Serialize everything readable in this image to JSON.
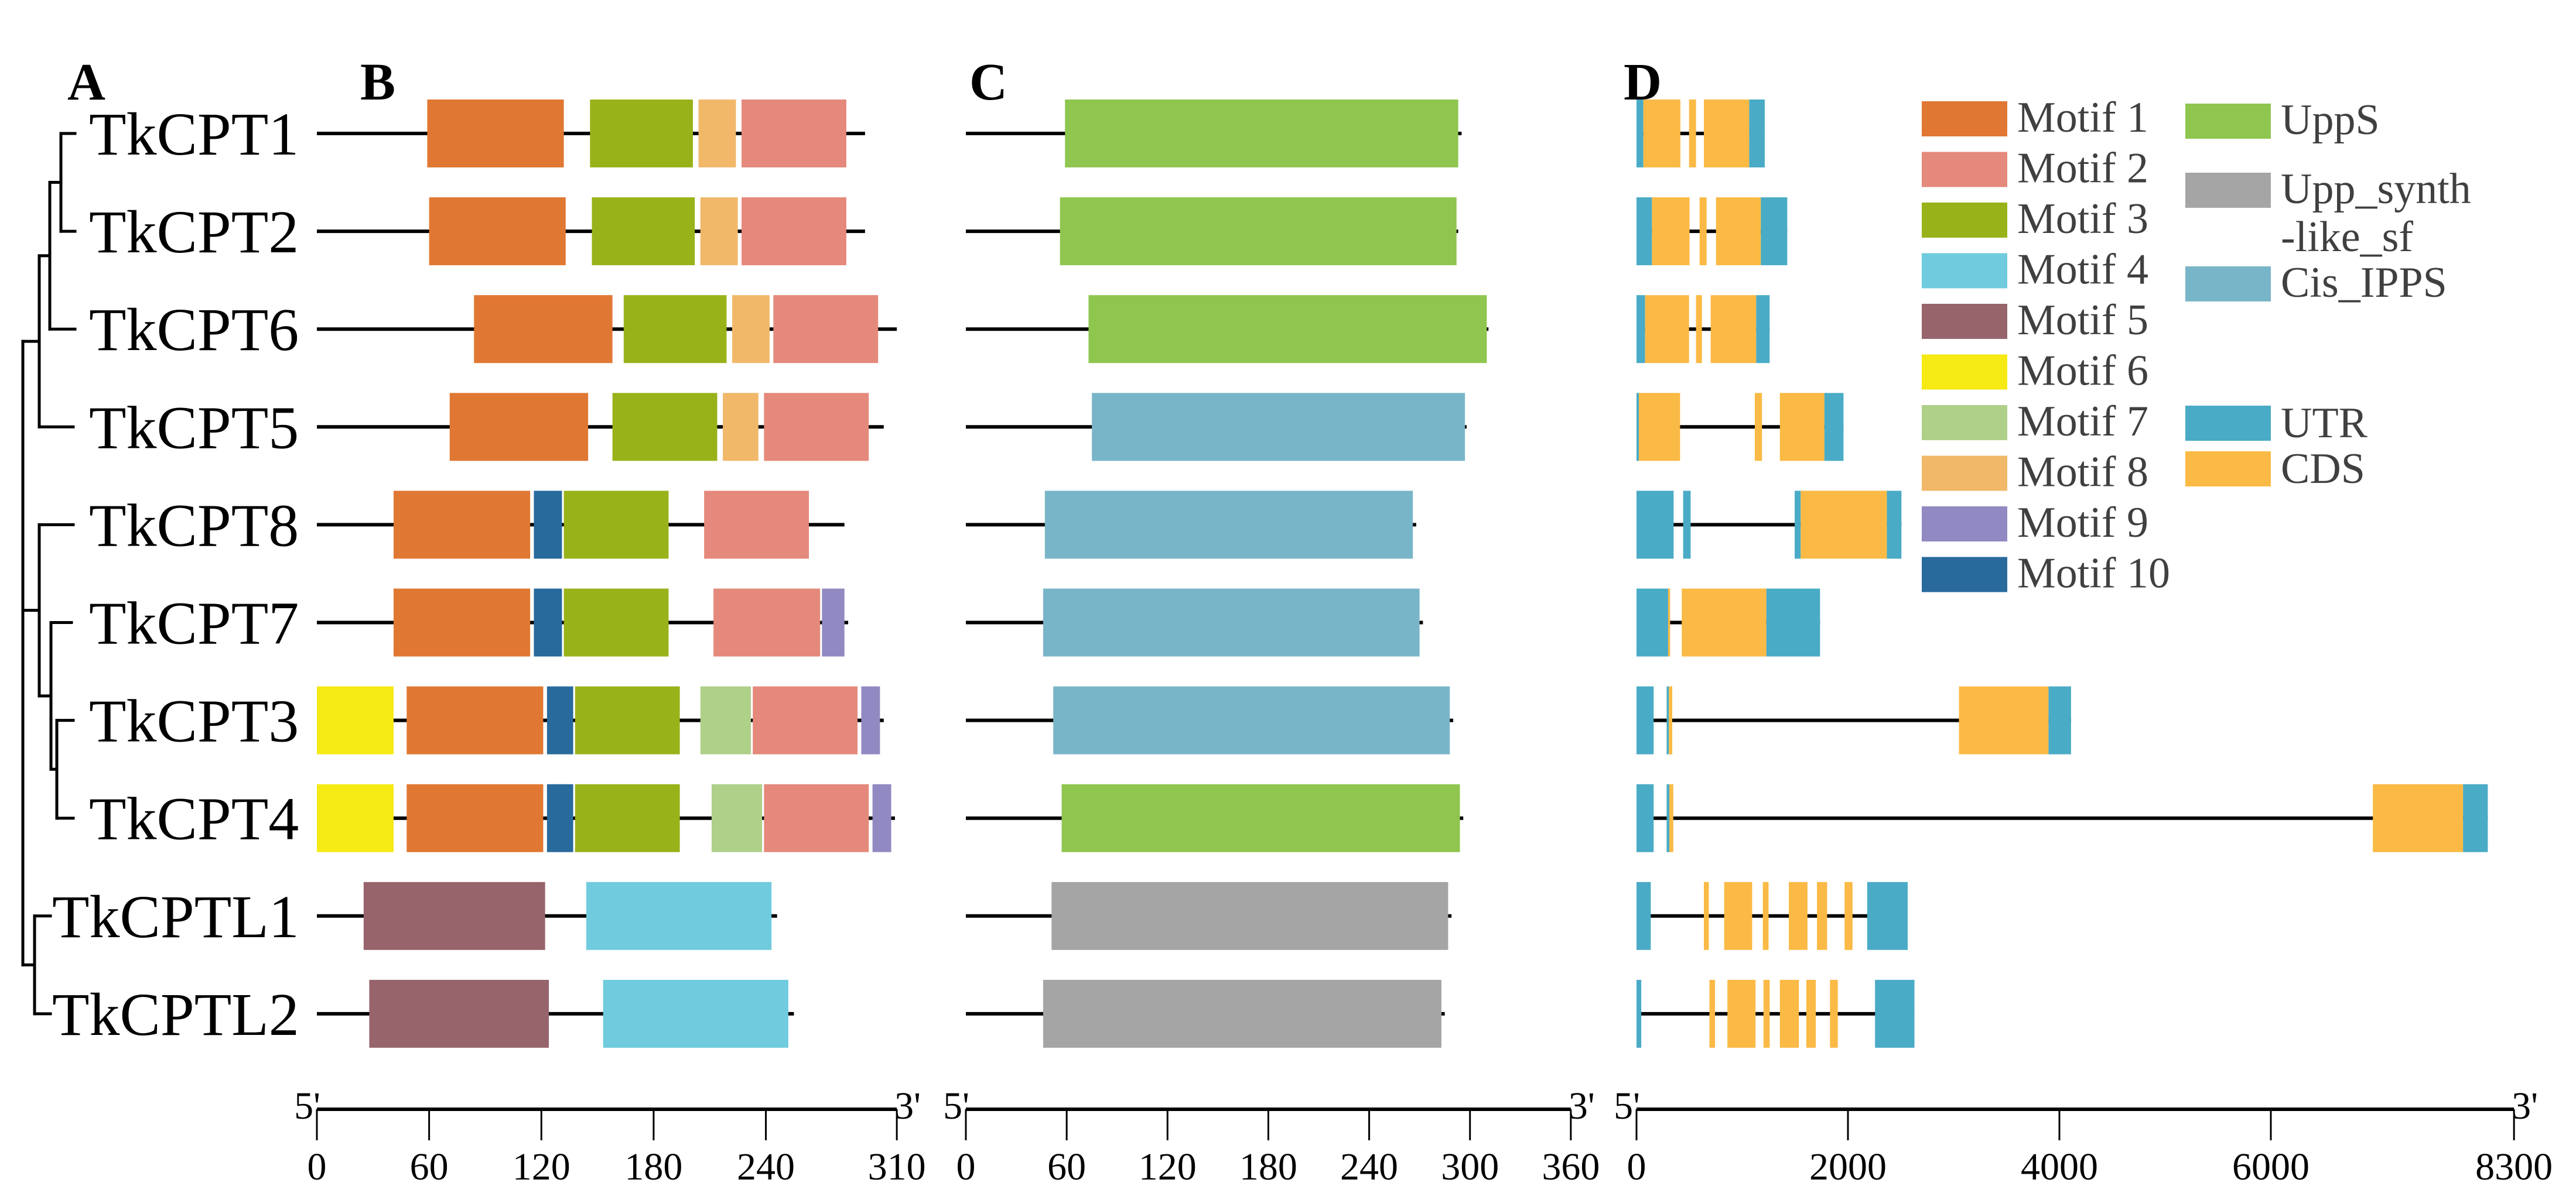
{
  "panels": {
    "A": "A",
    "B": "B",
    "C": "C",
    "D": "D"
  },
  "colors": {
    "Motif 1": "#E07833",
    "Motif 2": "#E4897B",
    "Motif 3": "#98B31A",
    "Motif 4": "#6FCBDD",
    "Motif 5": "#97646C",
    "Motif 6": "#F5EA14",
    "Motif 7": "#AFD089",
    "Motif 8": "#F1B86A",
    "Motif 9": "#9189C1",
    "Motif 10": "#286A9C",
    "UppS": "#8FC650",
    "Upp_synth-like_sf": "#A5A5A5",
    "Cis_IPPS": "#79B5C8",
    "UTR": "#4AABC6",
    "CDS": "#FBBA45",
    "line": "#000000",
    "legend_text": "#404040"
  },
  "legend": {
    "motifs": [
      "Motif 1",
      "Motif 2",
      "Motif 3",
      "Motif 4",
      "Motif 5",
      "Motif 6",
      "Motif 7",
      "Motif 8",
      "Motif 9",
      "Motif 10"
    ],
    "domains": [
      {
        "key": "UppS",
        "lines": [
          "UppS"
        ]
      },
      {
        "key": "Upp_synth-like_sf",
        "lines": [
          "Upp_synth",
          "-like_sf"
        ]
      },
      {
        "key": "Cis_IPPS",
        "lines": [
          "Cis_IPPS"
        ]
      }
    ],
    "gene_features": [
      "UTR",
      "CDS"
    ]
  },
  "axes": {
    "B": {
      "start_label": "5'",
      "end_label": "3'",
      "max": 310,
      "ticks": [
        0,
        60,
        120,
        180,
        240,
        310
      ]
    },
    "C": {
      "start_label": "5'",
      "end_label": "3'",
      "max": 360,
      "ticks": [
        0,
        60,
        120,
        180,
        240,
        300,
        360
      ]
    },
    "D": {
      "start_label": "5'",
      "end_label": "3'",
      "max": 8300,
      "ticks": [
        0,
        2000,
        4000,
        6000,
        8300
      ]
    }
  },
  "genes": [
    {
      "name": "TkCPT1",
      "protein_length": 293,
      "motifs": [
        [
          "Motif 1",
          59,
          132
        ],
        [
          "Motif 3",
          146,
          201
        ],
        [
          "Motif 8",
          204,
          224
        ],
        [
          "Motif 2",
          227,
          283
        ]
      ],
      "domain": {
        "type": "UppS",
        "start": 59,
        "end": 293
      },
      "domain_line_end": 295,
      "gene_length": 1213,
      "features": [
        [
          "UTR",
          0,
          65
        ],
        [
          "CDS",
          65,
          415
        ],
        [
          "CDS",
          497,
          563
        ],
        [
          "CDS",
          637,
          1066
        ],
        [
          "UTR",
          1066,
          1213
        ]
      ]
    },
    {
      "name": "TkCPT2",
      "protein_length": 293,
      "motifs": [
        [
          "Motif 1",
          60,
          133
        ],
        [
          "Motif 3",
          147,
          202
        ],
        [
          "Motif 8",
          205,
          225
        ],
        [
          "Motif 2",
          227,
          283
        ]
      ],
      "domain": {
        "type": "UppS",
        "start": 56,
        "end": 292
      },
      "domain_line_end": 293,
      "gene_length": 1426,
      "features": [
        [
          "UTR",
          0,
          146
        ],
        [
          "CDS",
          146,
          502
        ],
        [
          "CDS",
          597,
          663
        ],
        [
          "CDS",
          752,
          1176
        ],
        [
          "UTR",
          1176,
          1426
        ]
      ]
    },
    {
      "name": "TkCPT6",
      "protein_length": 310,
      "motifs": [
        [
          "Motif 1",
          84,
          158
        ],
        [
          "Motif 3",
          164,
          219
        ],
        [
          "Motif 8",
          222,
          242
        ],
        [
          "Motif 2",
          244,
          300
        ]
      ],
      "domain": {
        "type": "UppS",
        "start": 73,
        "end": 310
      },
      "domain_line_end": 311,
      "gene_length": 1259,
      "features": [
        [
          "UTR",
          0,
          81
        ],
        [
          "CDS",
          81,
          497
        ],
        [
          "CDS",
          563,
          619
        ],
        [
          "CDS",
          702,
          1132
        ],
        [
          "UTR",
          1132,
          1259
        ]
      ]
    },
    {
      "name": "TkCPT5",
      "protein_length": 303,
      "motifs": [
        [
          "Motif 1",
          71,
          145
        ],
        [
          "Motif 3",
          158,
          214
        ],
        [
          "Motif 8",
          217,
          236
        ],
        [
          "Motif 2",
          239,
          295
        ]
      ],
      "domain": {
        "type": "Cis_IPPS",
        "start": 75,
        "end": 297
      },
      "domain_line_end": 298,
      "gene_length": 1958,
      "features": [
        [
          "UTR",
          0,
          22
        ],
        [
          "CDS",
          22,
          412
        ],
        [
          "CDS",
          1119,
          1187
        ],
        [
          "CDS",
          1356,
          1777
        ],
        [
          "UTR",
          1777,
          1958
        ]
      ]
    },
    {
      "name": "TkCPT8",
      "protein_length": 282,
      "motifs": [
        [
          "Motif 1",
          41,
          114
        ],
        [
          "Motif 10",
          116,
          131
        ],
        [
          "Motif 3",
          132,
          188
        ],
        [
          "Motif 2",
          207,
          263
        ]
      ],
      "domain": {
        "type": "Cis_IPPS",
        "start": 47,
        "end": 266
      },
      "domain_line_end": 268,
      "gene_length": 2506,
      "features": [
        [
          "UTR",
          0,
          351
        ],
        [
          "UTR",
          441,
          512
        ],
        [
          "UTR",
          1496,
          1553
        ],
        [
          "CDS",
          1553,
          2368
        ],
        [
          "UTR",
          2368,
          2506
        ]
      ]
    },
    {
      "name": "TkCPT7",
      "protein_length": 284,
      "motifs": [
        [
          "Motif 1",
          41,
          114
        ],
        [
          "Motif 10",
          116,
          131
        ],
        [
          "Motif 3",
          132,
          188
        ],
        [
          "Motif 2",
          212,
          269
        ],
        [
          "Motif 9",
          270,
          282
        ]
      ],
      "domain": {
        "type": "Cis_IPPS",
        "start": 46,
        "end": 270
      },
      "domain_line_end": 272,
      "gene_length": 1736,
      "features": [
        [
          "UTR",
          0,
          299
        ],
        [
          "CDS",
          299,
          318
        ],
        [
          "CDS",
          428,
          1228
        ],
        [
          "UTR",
          1228,
          1736
        ]
      ]
    },
    {
      "name": "TkCPT3",
      "protein_length": 303,
      "motifs": [
        [
          "Motif 6",
          0,
          41
        ],
        [
          "Motif 1",
          48,
          121
        ],
        [
          "Motif 10",
          123,
          137
        ],
        [
          "Motif 3",
          138,
          194
        ],
        [
          "Motif 7",
          205,
          232
        ],
        [
          "Motif 2",
          233,
          289
        ],
        [
          "Motif 9",
          291,
          301
        ]
      ],
      "domain": {
        "type": "Cis_IPPS",
        "start": 52,
        "end": 288
      },
      "domain_line_end": 290,
      "gene_length": 4110,
      "features": [
        [
          "UTR",
          0,
          162
        ],
        [
          "UTR",
          285,
          306
        ],
        [
          "CDS",
          306,
          338
        ],
        [
          "CDS",
          3050,
          3897
        ],
        [
          "UTR",
          3897,
          4110
        ]
      ]
    },
    {
      "name": "TkCPT4",
      "protein_length": 309,
      "motifs": [
        [
          "Motif 6",
          0,
          41
        ],
        [
          "Motif 1",
          48,
          121
        ],
        [
          "Motif 10",
          123,
          137
        ],
        [
          "Motif 3",
          138,
          194
        ],
        [
          "Motif 7",
          211,
          238
        ],
        [
          "Motif 2",
          239,
          295
        ],
        [
          "Motif 9",
          297,
          307
        ]
      ],
      "domain": {
        "type": "UppS",
        "start": 57,
        "end": 294
      },
      "domain_line_end": 296,
      "gene_length": 8052,
      "features": [
        [
          "UTR",
          0,
          162
        ],
        [
          "UTR",
          285,
          311
        ],
        [
          "CDS",
          311,
          348
        ],
        [
          "CDS",
          6965,
          7818
        ],
        [
          "UTR",
          7818,
          8052
        ]
      ]
    },
    {
      "name": "TkCPTL1",
      "protein_length": 246,
      "motifs": [
        [
          "Motif 5",
          25,
          122
        ],
        [
          "Motif 4",
          144,
          243
        ]
      ],
      "domain": {
        "type": "Upp_synth-like_sf",
        "start": 51,
        "end": 287
      },
      "domain_line_end": 289,
      "gene_length": 2565,
      "features": [
        [
          "UTR",
          0,
          135
        ],
        [
          "CDS",
          637,
          684
        ],
        [
          "CDS",
          829,
          1094
        ],
        [
          "CDS",
          1195,
          1249
        ],
        [
          "CDS",
          1441,
          1617
        ],
        [
          "CDS",
          1707,
          1803
        ],
        [
          "CDS",
          1968,
          2043
        ],
        [
          "UTR",
          2182,
          2565
        ]
      ]
    },
    {
      "name": "TkCPTL2",
      "protein_length": 255,
      "motifs": [
        [
          "Motif 5",
          28,
          124
        ],
        [
          "Motif 4",
          153,
          252
        ]
      ],
      "domain": {
        "type": "Upp_synth-like_sf",
        "start": 46,
        "end": 283
      },
      "domain_line_end": 285,
      "gene_length": 2629,
      "features": [
        [
          "UTR",
          0,
          45
        ],
        [
          "CDS",
          690,
          743
        ],
        [
          "CDS",
          860,
          1126
        ],
        [
          "CDS",
          1201,
          1260
        ],
        [
          "CDS",
          1356,
          1536
        ],
        [
          "CDS",
          1606,
          1696
        ],
        [
          "CDS",
          1830,
          1904
        ],
        [
          "UTR",
          2256,
          2629
        ]
      ]
    }
  ]
}
